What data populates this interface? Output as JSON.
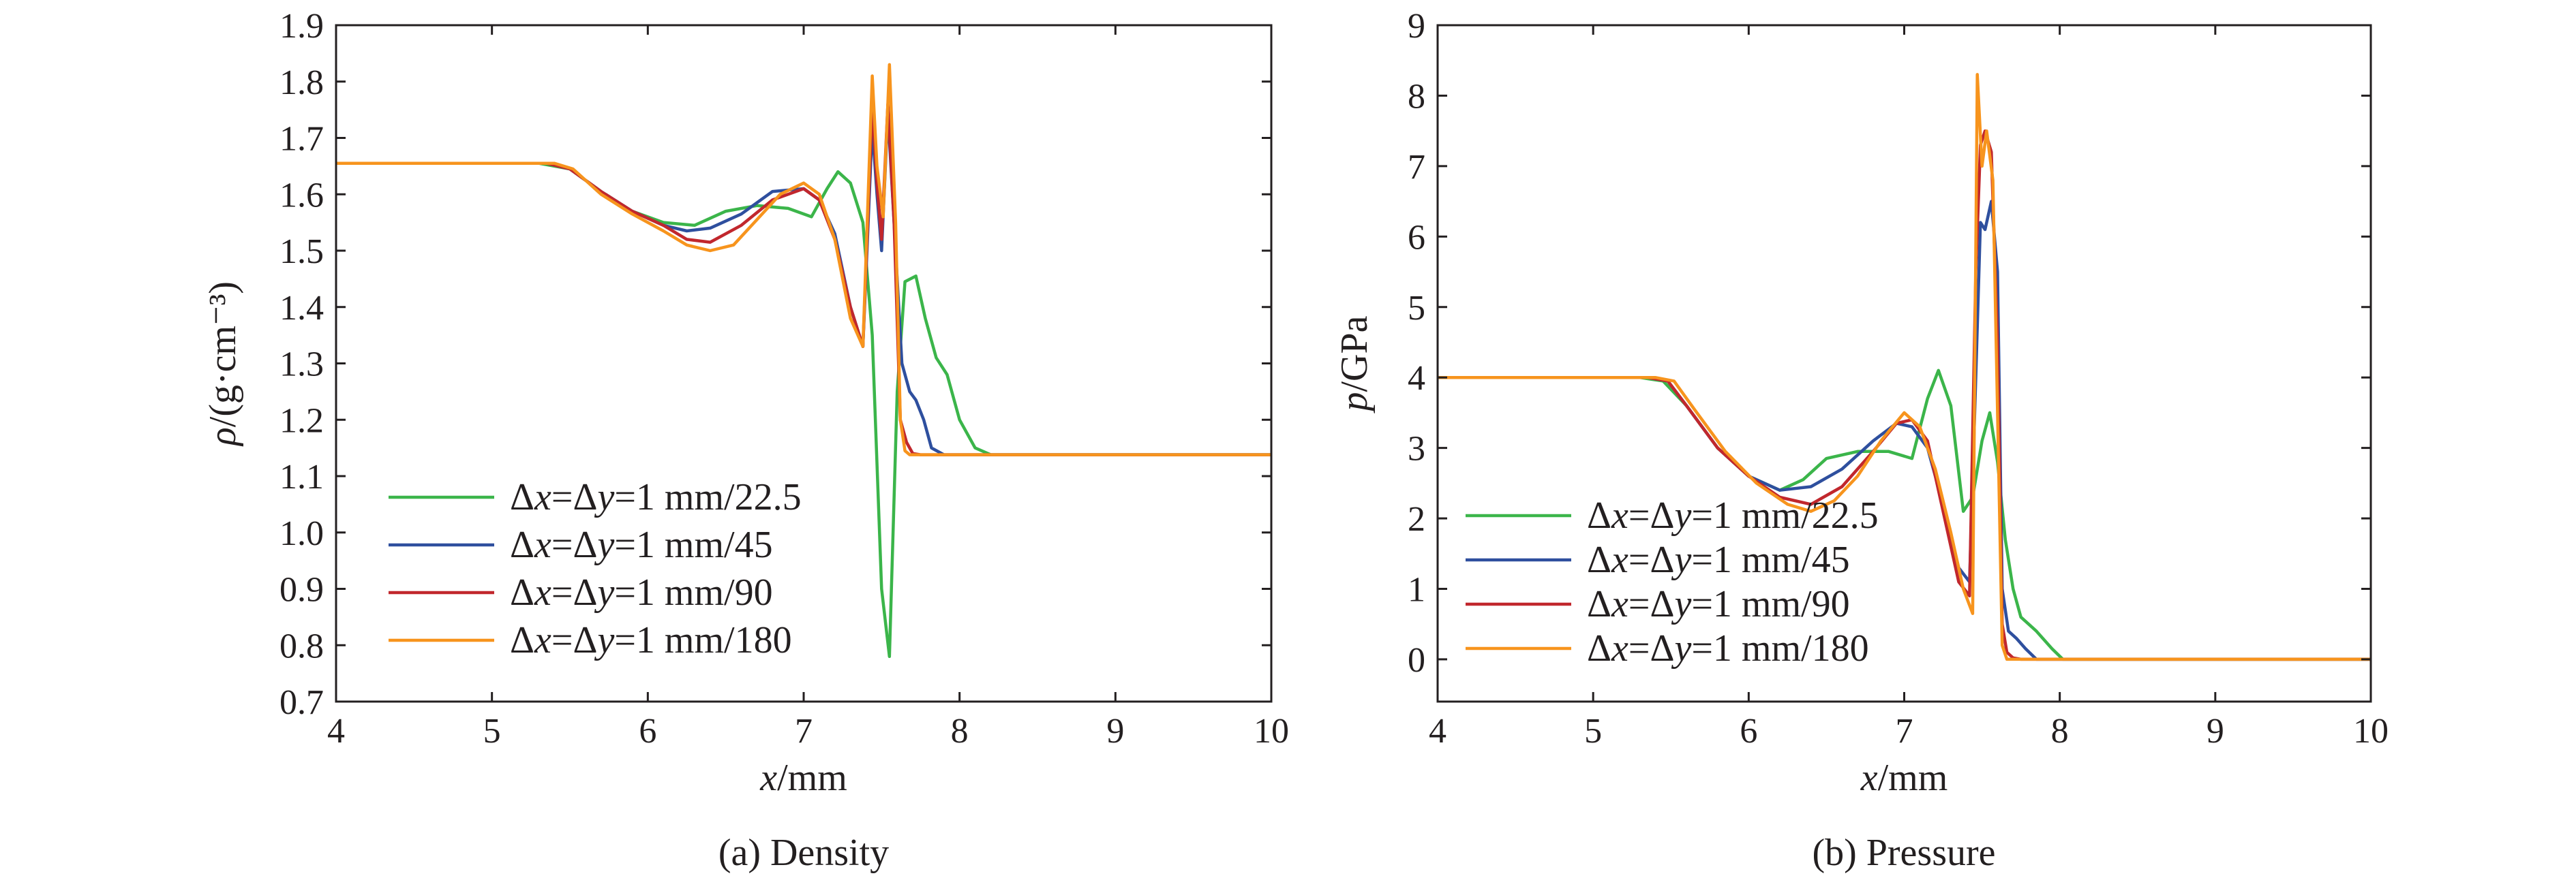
{
  "chart_data": [
    {
      "type": "line",
      "caption": "(a) Density",
      "xlabel": "x/mm",
      "ylabel": "ρ/(g·cm⁻³)",
      "xlim": [
        4,
        10
      ],
      "ylim": [
        0.7,
        1.9
      ],
      "xticks": [
        "4",
        "5",
        "6",
        "7",
        "8",
        "9",
        "10"
      ],
      "yticks": [
        "0.7",
        "0.8",
        "0.9",
        "1.0",
        "1.1",
        "1.2",
        "1.3",
        "1.4",
        "1.5",
        "1.6",
        "1.7",
        "1.8",
        "1.9"
      ],
      "legend_position": "bottom-left",
      "grid": false,
      "series": [
        {
          "name": "Δx=Δy=1 mm/22.5",
          "color": "#3bb54a",
          "x": [
            4.0,
            5.3,
            5.5,
            5.7,
            5.9,
            6.1,
            6.3,
            6.5,
            6.7,
            6.9,
            7.05,
            7.15,
            7.22,
            7.3,
            7.38,
            7.44,
            7.5,
            7.55,
            7.6,
            7.65,
            7.72,
            7.78,
            7.85,
            7.92,
            8.0,
            8.1,
            8.2,
            10.0
          ],
          "y": [
            1.655,
            1.655,
            1.645,
            1.605,
            1.57,
            1.55,
            1.545,
            1.57,
            1.58,
            1.575,
            1.56,
            1.61,
            1.64,
            1.62,
            1.55,
            1.35,
            0.9,
            0.78,
            1.25,
            1.445,
            1.455,
            1.38,
            1.31,
            1.28,
            1.2,
            1.15,
            1.138,
            1.138
          ]
        },
        {
          "name": "Δx=Δy=1 mm/45",
          "color": "#2e4f9e",
          "x": [
            4.0,
            5.35,
            5.5,
            5.7,
            5.9,
            6.1,
            6.25,
            6.4,
            6.6,
            6.8,
            7.0,
            7.1,
            7.2,
            7.3,
            7.38,
            7.44,
            7.47,
            7.5,
            7.54,
            7.58,
            7.63,
            7.68,
            7.72,
            7.77,
            7.82,
            7.9,
            10.0
          ],
          "y": [
            1.655,
            1.655,
            1.645,
            1.605,
            1.57,
            1.545,
            1.535,
            1.54,
            1.565,
            1.605,
            1.61,
            1.59,
            1.53,
            1.4,
            1.33,
            1.72,
            1.6,
            1.5,
            1.745,
            1.55,
            1.3,
            1.25,
            1.235,
            1.2,
            1.15,
            1.138,
            1.138
          ]
        },
        {
          "name": "Δx=Δy=1 mm/90",
          "color": "#c1272d",
          "x": [
            4.0,
            5.35,
            5.5,
            5.7,
            5.9,
            6.1,
            6.25,
            6.4,
            6.6,
            6.8,
            7.0,
            7.1,
            7.2,
            7.3,
            7.38,
            7.44,
            7.47,
            7.5,
            7.54,
            7.58,
            7.62,
            7.66,
            7.7,
            7.75,
            10.0
          ],
          "y": [
            1.655,
            1.655,
            1.645,
            1.605,
            1.57,
            1.545,
            1.52,
            1.515,
            1.545,
            1.59,
            1.61,
            1.59,
            1.52,
            1.4,
            1.33,
            1.76,
            1.62,
            1.52,
            1.76,
            1.55,
            1.2,
            1.16,
            1.14,
            1.138,
            1.138
          ]
        },
        {
          "name": "Δx=Δy=1 mm/180",
          "color": "#f7941d",
          "x": [
            4.0,
            5.4,
            5.52,
            5.7,
            5.9,
            6.1,
            6.25,
            6.4,
            6.55,
            6.7,
            6.85,
            7.0,
            7.1,
            7.2,
            7.3,
            7.38,
            7.44,
            7.47,
            7.51,
            7.55,
            7.59,
            7.62,
            7.65,
            7.68,
            10.0
          ],
          "y": [
            1.655,
            1.655,
            1.645,
            1.6,
            1.565,
            1.535,
            1.51,
            1.5,
            1.51,
            1.555,
            1.6,
            1.62,
            1.6,
            1.52,
            1.38,
            1.33,
            1.81,
            1.65,
            1.56,
            1.83,
            1.55,
            1.2,
            1.145,
            1.138,
            1.138
          ]
        }
      ]
    },
    {
      "type": "line",
      "caption": "(b) Pressure",
      "xlabel": "x/mm",
      "ylabel": "p/GPa",
      "xlim": [
        4,
        10
      ],
      "ylim": [
        -0.6,
        9
      ],
      "xticks": [
        "4",
        "5",
        "6",
        "7",
        "8",
        "9",
        "10"
      ],
      "yticks": [
        "0",
        "1",
        "2",
        "3",
        "4",
        "5",
        "6",
        "7",
        "8",
        "9"
      ],
      "legend_position": "bottom-left",
      "grid": false,
      "series": [
        {
          "name": "Δx=Δy=1 mm/22.5",
          "color": "#3bb54a",
          "x": [
            4.0,
            5.3,
            5.45,
            5.6,
            5.8,
            6.0,
            6.2,
            6.35,
            6.5,
            6.7,
            6.9,
            7.05,
            7.15,
            7.22,
            7.3,
            7.38,
            7.44,
            7.5,
            7.55,
            7.6,
            7.65,
            7.7,
            7.75,
            7.85,
            7.95,
            8.02,
            10.0
          ],
          "y": [
            4.0,
            4.0,
            3.95,
            3.6,
            3.0,
            2.6,
            2.4,
            2.55,
            2.85,
            2.95,
            2.95,
            2.85,
            3.7,
            4.1,
            3.6,
            2.1,
            2.3,
            3.1,
            3.5,
            2.8,
            1.7,
            1.0,
            0.6,
            0.4,
            0.15,
            0.0,
            0.0
          ]
        },
        {
          "name": "Δx=Δy=1 mm/45",
          "color": "#2e4f9e",
          "x": [
            4.0,
            5.35,
            5.48,
            5.6,
            5.8,
            6.0,
            6.2,
            6.4,
            6.6,
            6.8,
            6.95,
            7.05,
            7.15,
            7.25,
            7.35,
            7.42,
            7.46,
            7.49,
            7.52,
            7.56,
            7.6,
            7.63,
            7.67,
            7.72,
            7.78,
            7.85,
            10.0
          ],
          "y": [
            4.0,
            4.0,
            3.95,
            3.6,
            3.0,
            2.6,
            2.4,
            2.45,
            2.7,
            3.1,
            3.35,
            3.3,
            3.0,
            2.2,
            1.3,
            1.1,
            4.0,
            6.2,
            6.1,
            6.5,
            5.5,
            1.0,
            0.4,
            0.3,
            0.15,
            0.0,
            0.0
          ]
        },
        {
          "name": "Δx=Δy=1 mm/90",
          "color": "#c1272d",
          "x": [
            4.0,
            5.35,
            5.48,
            5.6,
            5.8,
            6.0,
            6.2,
            6.4,
            6.6,
            6.8,
            6.95,
            7.05,
            7.15,
            7.25,
            7.35,
            7.42,
            7.46,
            7.49,
            7.52,
            7.56,
            7.6,
            7.63,
            7.66,
            7.7,
            7.75,
            10.0
          ],
          "y": [
            4.0,
            4.0,
            3.95,
            3.6,
            3.0,
            2.6,
            2.3,
            2.2,
            2.45,
            2.95,
            3.35,
            3.4,
            3.1,
            2.1,
            1.1,
            0.9,
            5.5,
            7.3,
            7.5,
            7.2,
            4.5,
            0.5,
            0.1,
            0.02,
            0.0,
            0.0
          ]
        },
        {
          "name": "Δx=Δy=1 mm/180",
          "color": "#f7941d",
          "x": [
            4.0,
            5.4,
            5.52,
            5.65,
            5.85,
            6.05,
            6.25,
            6.4,
            6.55,
            6.7,
            6.85,
            7.0,
            7.1,
            7.2,
            7.3,
            7.38,
            7.44,
            7.47,
            7.5,
            7.53,
            7.57,
            7.6,
            7.63,
            7.66,
            10.0
          ],
          "y": [
            4.0,
            4.0,
            3.95,
            3.55,
            2.95,
            2.5,
            2.2,
            2.1,
            2.25,
            2.6,
            3.1,
            3.5,
            3.3,
            2.7,
            1.8,
            1.0,
            0.65,
            8.3,
            7.0,
            7.5,
            6.8,
            3.5,
            0.2,
            0.0,
            0.0
          ]
        }
      ]
    }
  ]
}
